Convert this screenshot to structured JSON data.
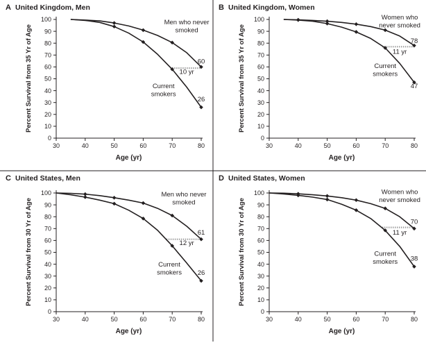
{
  "figure": {
    "colors": {
      "line": "#231f20",
      "axis": "#231f20",
      "text": "#231f20",
      "gap_dots": "#9a9a9a",
      "divider": "#231f20"
    }
  },
  "chart_data": [
    {
      "type": "line",
      "panel_letter": "A",
      "title": "United Kingdom, Men",
      "xlabel": "Age (yr)",
      "ylabel": "Percent Survival from 35 Yr of Age",
      "xlim": [
        30,
        80
      ],
      "ylim": [
        0,
        100
      ],
      "x_ticks": [
        30,
        40,
        50,
        60,
        70,
        80
      ],
      "y_ticks": [
        0,
        10,
        20,
        30,
        40,
        50,
        60,
        70,
        80,
        90,
        100
      ],
      "series": [
        {
          "name": "Men who never smoked",
          "x": [
            35,
            40,
            45,
            50,
            55,
            60,
            65,
            70,
            75,
            80
          ],
          "y": [
            100,
            99.5,
            98.8,
            97,
            94.5,
            91,
            86.5,
            80.5,
            72,
            60
          ],
          "marker_x": [
            50,
            60,
            70,
            80
          ]
        },
        {
          "name": "Current smokers",
          "x": [
            35,
            40,
            45,
            50,
            55,
            60,
            65,
            70,
            75,
            80
          ],
          "y": [
            100,
            99.2,
            97.5,
            94,
            88.5,
            81,
            70.5,
            58,
            43,
            26
          ],
          "marker_x": [
            50,
            60,
            70,
            80
          ]
        }
      ],
      "annotations": [
        {
          "text": "Men who never\nsmoked",
          "x": 75,
          "y": 96
        },
        {
          "text": "Current\nsmokers",
          "x": 67,
          "y": 42
        },
        {
          "text": "60",
          "x": 80,
          "y": 63
        },
        {
          "text": "26",
          "x": 80,
          "y": 31
        },
        {
          "text": "10 yr",
          "x": 75,
          "y": 54
        }
      ],
      "gap": {
        "y": 59,
        "x_from": 70,
        "x_to": 80
      }
    },
    {
      "type": "line",
      "panel_letter": "B",
      "title": "United Kingdom, Women",
      "xlabel": "Age (yr)",
      "ylabel": "Percent Survival from 35 Yr of Age",
      "xlim": [
        30,
        80
      ],
      "ylim": [
        0,
        100
      ],
      "x_ticks": [
        30,
        40,
        50,
        60,
        70,
        80
      ],
      "y_ticks": [
        0,
        10,
        20,
        30,
        40,
        50,
        60,
        70,
        80,
        90,
        100
      ],
      "series": [
        {
          "name": "Women who never smoked",
          "x": [
            35,
            40,
            45,
            50,
            55,
            60,
            65,
            70,
            75,
            80
          ],
          "y": [
            100,
            99.7,
            99.2,
            98.5,
            97.5,
            96,
            94,
            91,
            86,
            78
          ],
          "marker_x": [
            40,
            50,
            60,
            70,
            80
          ]
        },
        {
          "name": "Current smokers",
          "x": [
            35,
            40,
            45,
            50,
            55,
            60,
            65,
            70,
            75,
            80
          ],
          "y": [
            100,
            99.5,
            98.5,
            96.5,
            93.5,
            89.5,
            84,
            76,
            63,
            47
          ],
          "marker_x": [
            40,
            50,
            60,
            70,
            80
          ]
        }
      ],
      "annotations": [
        {
          "text": "Women who\nnever smoked",
          "x": 75,
          "y": 100
        },
        {
          "text": "Current\nsmokers",
          "x": 70,
          "y": 59
        },
        {
          "text": "78",
          "x": 80,
          "y": 80
        },
        {
          "text": "47",
          "x": 80,
          "y": 42
        },
        {
          "text": "11 yr",
          "x": 75,
          "y": 71
        }
      ],
      "gap": {
        "y": 77,
        "x_from": 69,
        "x_to": 80
      }
    },
    {
      "type": "line",
      "panel_letter": "C",
      "title": "United States, Men",
      "xlabel": "Age (yr)",
      "ylabel": "Percent Survival from 30 Yr of Age",
      "xlim": [
        30,
        80
      ],
      "ylim": [
        0,
        100
      ],
      "x_ticks": [
        30,
        40,
        50,
        60,
        70,
        80
      ],
      "y_ticks": [
        0,
        10,
        20,
        30,
        40,
        50,
        60,
        70,
        80,
        90,
        100
      ],
      "series": [
        {
          "name": "Men who never smoked",
          "x": [
            30,
            35,
            40,
            45,
            50,
            55,
            60,
            65,
            70,
            75,
            80
          ],
          "y": [
            100,
            99.7,
            99,
            97.8,
            96,
            94,
            91.5,
            87,
            81,
            72,
            61
          ],
          "marker_x": [
            40,
            50,
            60,
            70,
            80
          ]
        },
        {
          "name": "Current smokers",
          "x": [
            30,
            35,
            40,
            45,
            50,
            55,
            60,
            65,
            70,
            75,
            80
          ],
          "y": [
            100,
            98.5,
            96.5,
            94,
            91,
            85.5,
            78.5,
            68.5,
            55.5,
            41,
            26
          ],
          "marker_x": [
            40,
            50,
            60,
            70,
            80
          ]
        }
      ],
      "annotations": [
        {
          "text": "Men who never\nsmoked",
          "x": 74,
          "y": 97
        },
        {
          "text": "Current\nsmokers",
          "x": 69,
          "y": 38
        },
        {
          "text": "61",
          "x": 80,
          "y": 65
        },
        {
          "text": "26",
          "x": 80,
          "y": 31
        },
        {
          "text": "12 yr",
          "x": 75,
          "y": 56
        }
      ],
      "gap": {
        "y": 61,
        "x_from": 68,
        "x_to": 80
      }
    },
    {
      "type": "line",
      "panel_letter": "D",
      "title": "United States, Women",
      "xlabel": "Age (yr)",
      "ylabel": "Percent Survival from 30 Yr of Age",
      "xlim": [
        30,
        80
      ],
      "ylim": [
        0,
        100
      ],
      "x_ticks": [
        30,
        40,
        50,
        60,
        70,
        80
      ],
      "y_ticks": [
        0,
        10,
        20,
        30,
        40,
        50,
        60,
        70,
        80,
        90,
        100
      ],
      "series": [
        {
          "name": "Women who never smoked",
          "x": [
            30,
            35,
            40,
            45,
            50,
            55,
            60,
            65,
            70,
            75,
            80
          ],
          "y": [
            100,
            99.8,
            99.3,
            98.5,
            97.5,
            96,
            94,
            91,
            87,
            80,
            70
          ],
          "marker_x": [
            40,
            50,
            60,
            70,
            80
          ]
        },
        {
          "name": "Current smokers",
          "x": [
            30,
            35,
            40,
            45,
            50,
            55,
            60,
            65,
            70,
            75,
            80
          ],
          "y": [
            100,
            99.2,
            98,
            96.5,
            94.5,
            90.5,
            85.5,
            78.5,
            68.5,
            55,
            38
          ],
          "marker_x": [
            40,
            50,
            60,
            70,
            80
          ]
        }
      ],
      "annotations": [
        {
          "text": "Women who\nnever smoked",
          "x": 75,
          "y": 99
        },
        {
          "text": "Current\nsmokers",
          "x": 70,
          "y": 47
        },
        {
          "text": "70",
          "x": 80,
          "y": 74
        },
        {
          "text": "38",
          "x": 80,
          "y": 43
        },
        {
          "text": "11 yr",
          "x": 75,
          "y": 65
        }
      ],
      "gap": {
        "y": 71,
        "x_from": 69,
        "x_to": 80
      }
    }
  ]
}
